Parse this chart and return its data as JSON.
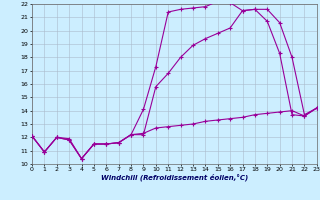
{
  "xlabel": "Windchill (Refroidissement éolien,°C)",
  "bg_color": "#cceeff",
  "grid_color": "#aabbcc",
  "line_color": "#990099",
  "xmin": 0,
  "xmax": 23,
  "ymin": 10,
  "ymax": 22,
  "line1_x": [
    0,
    1,
    2,
    3,
    4,
    5,
    6,
    7,
    8,
    9,
    10,
    11,
    12,
    13,
    14,
    15,
    16,
    17,
    18,
    19,
    20,
    21,
    22,
    23
  ],
  "line1_y": [
    12.1,
    10.9,
    12.0,
    11.9,
    10.4,
    11.5,
    11.5,
    11.6,
    12.2,
    14.1,
    17.3,
    21.4,
    21.6,
    21.7,
    21.8,
    22.2,
    22.1,
    21.5,
    21.6,
    20.7,
    18.3,
    13.7,
    13.6,
    14.2
  ],
  "line2_x": [
    0,
    1,
    2,
    3,
    4,
    5,
    6,
    7,
    8,
    9,
    10,
    11,
    12,
    13,
    14,
    15,
    16,
    17,
    18,
    19,
    20,
    21,
    22,
    23
  ],
  "line2_y": [
    12.1,
    10.9,
    12.0,
    11.8,
    10.4,
    11.5,
    11.5,
    11.6,
    12.2,
    12.2,
    15.8,
    16.8,
    18.0,
    18.9,
    19.4,
    19.8,
    20.2,
    21.5,
    21.6,
    21.6,
    20.6,
    18.0,
    13.7,
    14.2
  ],
  "line3_x": [
    0,
    1,
    2,
    3,
    4,
    5,
    6,
    7,
    8,
    9,
    10,
    11,
    12,
    13,
    14,
    15,
    16,
    17,
    18,
    19,
    20,
    21,
    22,
    23
  ],
  "line3_y": [
    12.1,
    10.9,
    12.0,
    11.8,
    10.4,
    11.5,
    11.5,
    11.6,
    12.2,
    12.3,
    12.7,
    12.8,
    12.9,
    13.0,
    13.2,
    13.3,
    13.4,
    13.5,
    13.7,
    13.8,
    13.9,
    14.0,
    13.6,
    14.2
  ]
}
